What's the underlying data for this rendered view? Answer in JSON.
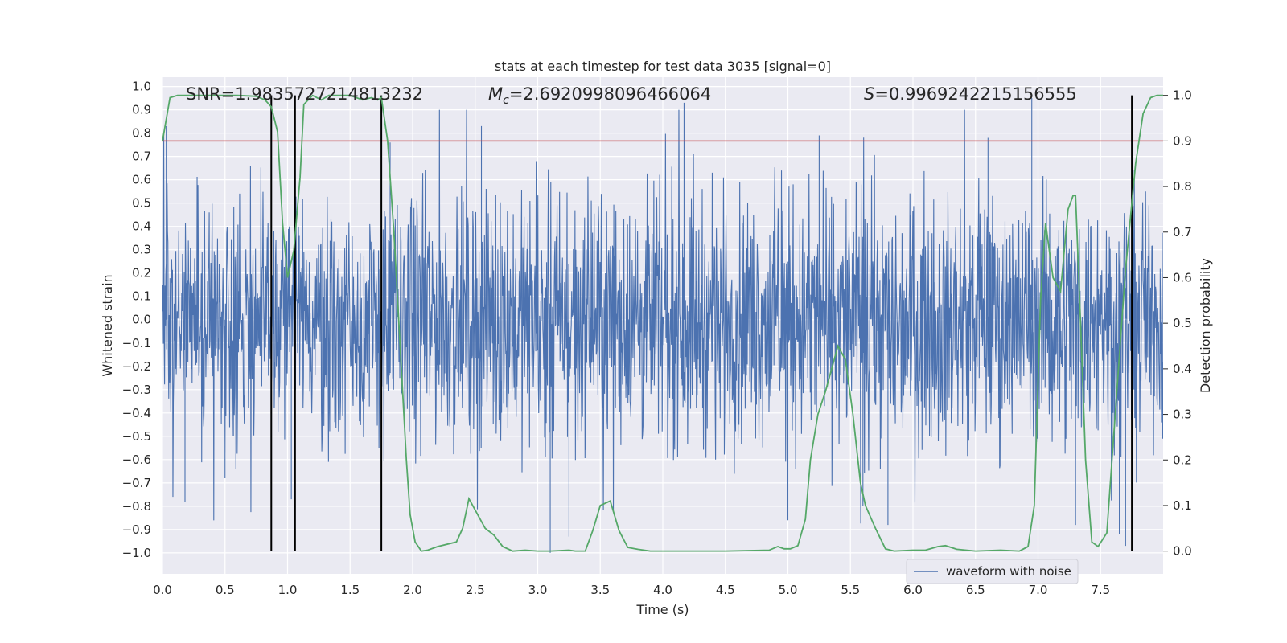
{
  "chart_data": {
    "type": "line",
    "title": "stats at each timestep for test data 3035 [signal=0]",
    "xlabel": "Time (s)",
    "ylabel_left": "Whitened strain",
    "ylabel_right": "Detection probability",
    "xlim": [
      0.0,
      8.0
    ],
    "ylim_left": [
      -1.09,
      1.04
    ],
    "ylim_right": [
      -0.05,
      1.04
    ],
    "xticks": [
      "0.0",
      "0.5",
      "1.0",
      "1.5",
      "2.0",
      "2.5",
      "3.0",
      "3.5",
      "4.0",
      "4.5",
      "5.0",
      "5.5",
      "6.0",
      "6.5",
      "7.0",
      "7.5"
    ],
    "yticks_left": [
      "1.0",
      "0.9",
      "0.8",
      "0.7",
      "0.6",
      "0.5",
      "0.4",
      "0.3",
      "0.2",
      "0.1",
      "0.0",
      "-0.1",
      "-0.2",
      "-0.3",
      "-0.4",
      "-0.5",
      "-0.6",
      "-0.7",
      "-0.8",
      "-0.9",
      "-1.0"
    ],
    "yticks_right": [
      "1.0",
      "0.9",
      "0.8",
      "0.7",
      "0.6",
      "0.5",
      "0.4",
      "0.3",
      "0.2",
      "0.1",
      "0.0"
    ],
    "annotations": {
      "snr": "SNR=1.9835727214813232",
      "mc_symbol": "M",
      "mc_sub": "c",
      "mc_value": "=2.6920998096466064",
      "s_symbol": "S",
      "s_value": "=0.9969242215156555"
    },
    "threshold": 0.9,
    "detection_times": [
      0.87,
      1.06,
      1.75,
      7.75
    ],
    "legend": [
      "waveform with noise"
    ],
    "series": [
      {
        "name": "waveform with noise",
        "type": "noise",
        "approx_envelope": [
          -0.45,
          0.45
        ],
        "approx_peak_range": [
          -1.0,
          0.93
        ],
        "spikes": [
          {
            "t": 0.03,
            "v": 0.83
          },
          {
            "t": 0.18,
            "v": -0.78
          },
          {
            "t": 0.5,
            "v": -0.68
          },
          {
            "t": 0.87,
            "v": 0.84
          },
          {
            "t": 1.03,
            "v": -0.77
          },
          {
            "t": 1.75,
            "v": -0.75
          },
          {
            "t": 1.82,
            "v": 0.76
          },
          {
            "t": 2.55,
            "v": 0.83
          },
          {
            "t": 3.1,
            "v": -1.0
          },
          {
            "t": 3.25,
            "v": -0.93
          },
          {
            "t": 4.17,
            "v": 0.93
          },
          {
            "t": 5.0,
            "v": -0.86
          },
          {
            "t": 5.25,
            "v": 0.79
          },
          {
            "t": 5.6,
            "v": -0.8
          },
          {
            "t": 5.8,
            "v": -0.88
          },
          {
            "t": 6.6,
            "v": 0.78
          },
          {
            "t": 6.95,
            "v": 0.95
          },
          {
            "t": 7.3,
            "v": -0.88
          },
          {
            "t": 7.65,
            "v": -0.92
          },
          {
            "t": 7.7,
            "v": -0.97
          }
        ]
      },
      {
        "name": "detection probability",
        "type": "line",
        "points": [
          [
            0.0,
            0.9
          ],
          [
            0.06,
            0.995
          ],
          [
            0.12,
            1.0
          ],
          [
            0.3,
            1.0
          ],
          [
            0.6,
            1.0
          ],
          [
            0.75,
            0.998
          ],
          [
            0.82,
            0.99
          ],
          [
            0.87,
            0.975
          ],
          [
            0.92,
            0.92
          ],
          [
            0.96,
            0.72
          ],
          [
            1.0,
            0.6
          ],
          [
            1.05,
            0.66
          ],
          [
            1.1,
            0.82
          ],
          [
            1.13,
            0.98
          ],
          [
            1.2,
            1.0
          ],
          [
            1.27,
            0.99
          ],
          [
            1.33,
            1.0
          ],
          [
            1.4,
            1.0
          ],
          [
            1.5,
            1.0
          ],
          [
            1.6,
            0.99
          ],
          [
            1.67,
            0.995
          ],
          [
            1.72,
            0.99
          ],
          [
            1.75,
            0.995
          ],
          [
            1.8,
            0.9
          ],
          [
            1.85,
            0.7
          ],
          [
            1.9,
            0.45
          ],
          [
            1.95,
            0.2
          ],
          [
            1.98,
            0.08
          ],
          [
            2.02,
            0.02
          ],
          [
            2.07,
            0.0
          ],
          [
            2.12,
            0.002
          ],
          [
            2.2,
            0.01
          ],
          [
            2.35,
            0.02
          ],
          [
            2.4,
            0.05
          ],
          [
            2.45,
            0.115
          ],
          [
            2.5,
            0.09
          ],
          [
            2.58,
            0.05
          ],
          [
            2.65,
            0.035
          ],
          [
            2.72,
            0.01
          ],
          [
            2.8,
            0.0
          ],
          [
            2.9,
            0.002
          ],
          [
            3.0,
            0.0
          ],
          [
            3.1,
            0.0
          ],
          [
            3.25,
            0.002
          ],
          [
            3.3,
            0.0
          ],
          [
            3.38,
            0.0
          ],
          [
            3.44,
            0.045
          ],
          [
            3.5,
            0.1
          ],
          [
            3.58,
            0.11
          ],
          [
            3.65,
            0.045
          ],
          [
            3.72,
            0.008
          ],
          [
            3.8,
            0.004
          ],
          [
            3.9,
            0.0
          ],
          [
            4.5,
            0.0
          ],
          [
            4.85,
            0.002
          ],
          [
            4.92,
            0.01
          ],
          [
            4.97,
            0.005
          ],
          [
            5.02,
            0.005
          ],
          [
            5.08,
            0.012
          ],
          [
            5.14,
            0.07
          ],
          [
            5.18,
            0.2
          ],
          [
            5.24,
            0.3
          ],
          [
            5.3,
            0.35
          ],
          [
            5.4,
            0.45
          ],
          [
            5.46,
            0.42
          ],
          [
            5.52,
            0.3
          ],
          [
            5.58,
            0.15
          ],
          [
            5.62,
            0.1
          ],
          [
            5.7,
            0.05
          ],
          [
            5.78,
            0.005
          ],
          [
            5.85,
            0.0
          ],
          [
            6.0,
            0.002
          ],
          [
            6.1,
            0.002
          ],
          [
            6.2,
            0.01
          ],
          [
            6.26,
            0.012
          ],
          [
            6.35,
            0.004
          ],
          [
            6.5,
            0.0
          ],
          [
            6.7,
            0.002
          ],
          [
            6.85,
            0.0
          ],
          [
            6.92,
            0.01
          ],
          [
            6.97,
            0.1
          ],
          [
            7.02,
            0.55
          ],
          [
            7.06,
            0.72
          ],
          [
            7.12,
            0.6
          ],
          [
            7.18,
            0.57
          ],
          [
            7.24,
            0.75
          ],
          [
            7.28,
            0.78
          ],
          [
            7.3,
            0.78
          ],
          [
            7.34,
            0.5
          ],
          [
            7.38,
            0.2
          ],
          [
            7.43,
            0.02
          ],
          [
            7.48,
            0.01
          ],
          [
            7.55,
            0.04
          ],
          [
            7.63,
            0.35
          ],
          [
            7.7,
            0.62
          ],
          [
            7.78,
            0.85
          ],
          [
            7.84,
            0.96
          ],
          [
            7.9,
            0.995
          ],
          [
            7.95,
            1.0
          ],
          [
            8.0,
            1.0
          ]
        ]
      }
    ],
    "colors": {
      "plot_bg": "#eaeaf2",
      "grid": "#ffffff",
      "waveform": "#4c72b0",
      "probability": "#55a868",
      "threshold": "#c44e52",
      "detection": "#000000"
    }
  }
}
